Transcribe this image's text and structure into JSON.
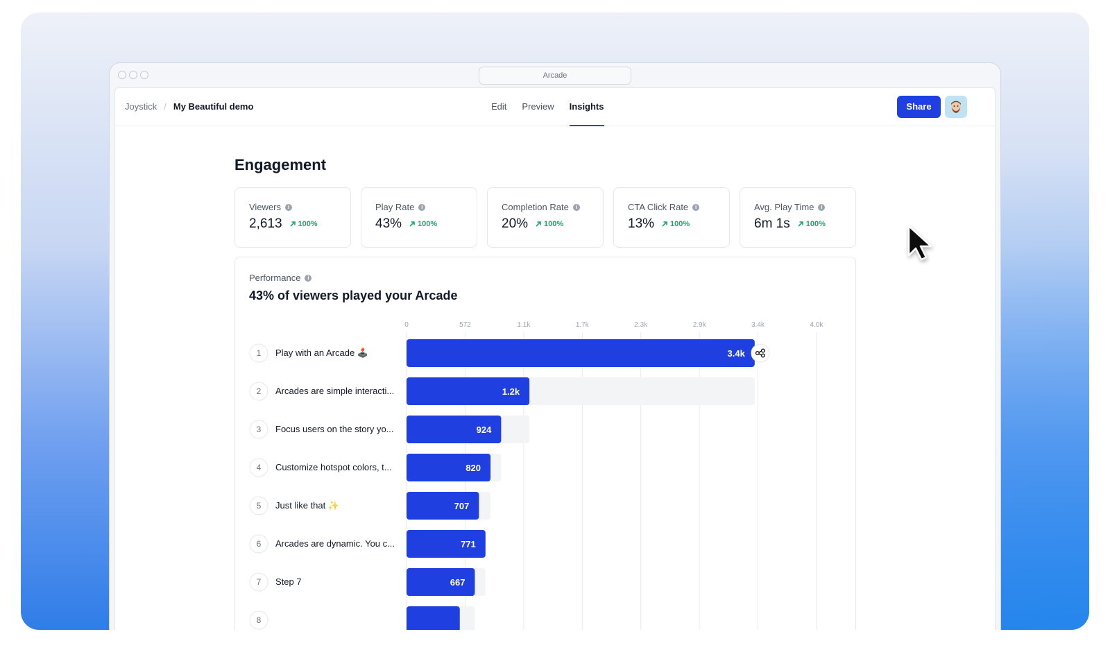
{
  "window": {
    "url_title": "Arcade"
  },
  "breadcrumb": {
    "root": "Joystick",
    "separator": "/",
    "current": "My Beautiful demo"
  },
  "tabs": [
    {
      "label": "Edit",
      "active": false
    },
    {
      "label": "Preview",
      "active": false
    },
    {
      "label": "Insights",
      "active": true
    }
  ],
  "header": {
    "share_label": "Share",
    "avatar": "user-avatar"
  },
  "page": {
    "title": "Engagement"
  },
  "stats": [
    {
      "label": "Viewers",
      "value": "2,613",
      "delta": "100%"
    },
    {
      "label": "Play Rate",
      "value": "43%",
      "delta": "100%"
    },
    {
      "label": "Completion Rate",
      "value": "20%",
      "delta": "100%"
    },
    {
      "label": "CTA Click Rate",
      "value": "13%",
      "delta": "100%"
    },
    {
      "label": "Avg. Play Time",
      "value": "6m 1s",
      "delta": "100%"
    }
  ],
  "performance": {
    "label": "Performance",
    "headline": "43% of viewers played your Arcade"
  },
  "colors": {
    "accent": "#1f3fe0",
    "positive": "#22a36b",
    "track": "#f3f4f6"
  },
  "chart_data": {
    "type": "bar",
    "orientation": "horizontal",
    "ticks": [
      "0",
      "572",
      "1.1k",
      "1.7k",
      "2.3k",
      "2.9k",
      "3.4k",
      "4.0k"
    ],
    "xlim": [
      0,
      4004
    ],
    "categories": [
      "Play with an Arcade 🕹️",
      "Arcades are simple interacti...",
      "Focus users on the story yo...",
      "Customize hotspot colors, t...",
      "Just like that ✨",
      "Arcades are dynamic. You c...",
      "Step 7",
      ""
    ],
    "values": [
      3400,
      1200,
      924,
      820,
      707,
      771,
      667,
      520
    ],
    "value_labels": [
      "3.4k",
      "1.2k",
      "924",
      "820",
      "707",
      "771",
      "667",
      ""
    ],
    "previous": [
      null,
      3400,
      1200,
      924,
      820,
      707,
      771,
      667
    ],
    "grid": true
  }
}
